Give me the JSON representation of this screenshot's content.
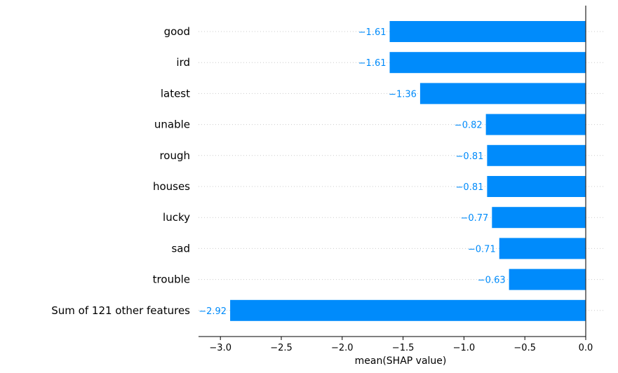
{
  "chart_data": {
    "type": "bar",
    "orientation": "horizontal",
    "categories": [
      "good",
      "ird",
      "latest",
      "unable",
      "rough",
      "houses",
      "lucky",
      "sad",
      "trouble",
      "Sum of 121 other features"
    ],
    "values": [
      -1.61,
      -1.61,
      -1.36,
      -0.82,
      -0.81,
      -0.81,
      -0.77,
      -0.71,
      -0.63,
      -2.92
    ],
    "value_labels": [
      "−1.61",
      "−1.61",
      "−1.36",
      "−0.82",
      "−0.81",
      "−0.81",
      "−0.77",
      "−0.71",
      "−0.63",
      "−2.92"
    ],
    "xlabel": "mean(SHAP value)",
    "xticks": [
      -3.0,
      -2.5,
      -2.0,
      -1.5,
      -1.0,
      -0.5,
      0.0
    ],
    "xtick_labels": [
      "−3.0",
      "−2.5",
      "−2.0",
      "−1.5",
      "−1.0",
      "−0.5",
      "0.0"
    ],
    "xlim": [
      -3.22,
      0.0
    ],
    "grid": "horizontal dotted row guides",
    "colors": {
      "bar": "#008bfb",
      "value_label": "#008bfb",
      "zero_line": "#333333",
      "grid": "#cccccc"
    }
  }
}
